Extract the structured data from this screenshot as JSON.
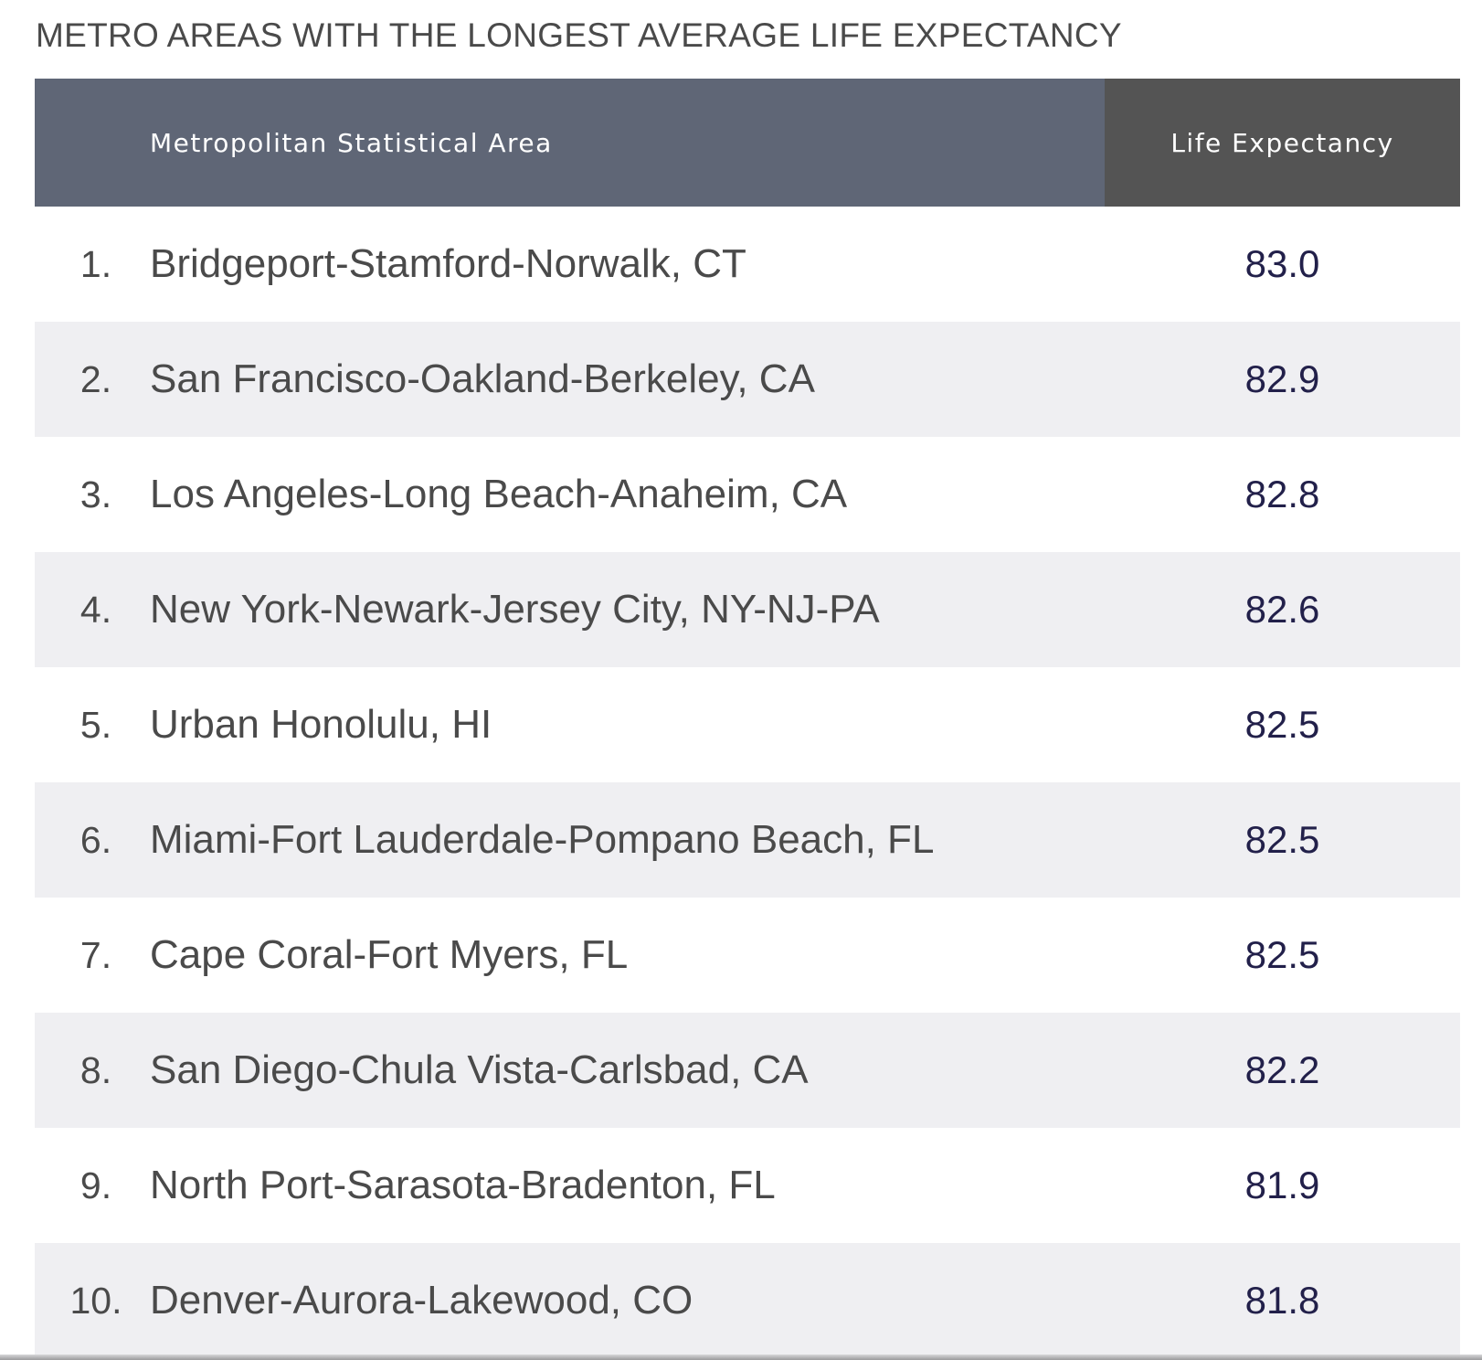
{
  "title": "METRO AREAS WITH THE LONGEST AVERAGE LIFE EXPECTANCY",
  "table": {
    "headers": {
      "area": "Metropolitan Statistical Area",
      "life": "Life Expectancy"
    },
    "rows": [
      {
        "rank": "1.",
        "area": "Bridgeport-Stamford-Norwalk, CT",
        "value": "83.0"
      },
      {
        "rank": "2.",
        "area": "San Francisco-Oakland-Berkeley, CA",
        "value": "82.9"
      },
      {
        "rank": "3.",
        "area": "Los Angeles-Long Beach-Anaheim, CA",
        "value": "82.8"
      },
      {
        "rank": "4.",
        "area": "New York-Newark-Jersey City, NY-NJ-PA",
        "value": "82.6"
      },
      {
        "rank": "5.",
        "area": "Urban Honolulu, HI",
        "value": "82.5"
      },
      {
        "rank": "6.",
        "area": "Miami-Fort Lauderdale-Pompano Beach, FL",
        "value": "82.5"
      },
      {
        "rank": "7.",
        "area": "Cape Coral-Fort Myers, FL",
        "value": "82.5"
      },
      {
        "rank": "8.",
        "area": "San Diego-Chula Vista-Carlsbad, CA",
        "value": "82.2"
      },
      {
        "rank": "9.",
        "area": "North Port-Sarasota-Bradenton, FL",
        "value": "81.9"
      },
      {
        "rank": "10.",
        "area": "Denver-Aurora-Lakewood, CO",
        "value": "81.8"
      }
    ]
  },
  "colors": {
    "header_area_bg": "#5f6676",
    "header_life_bg": "#545454",
    "row_alt_bg": "#efeff2",
    "text": "#4a4a4a",
    "value_text": "#22204a"
  }
}
